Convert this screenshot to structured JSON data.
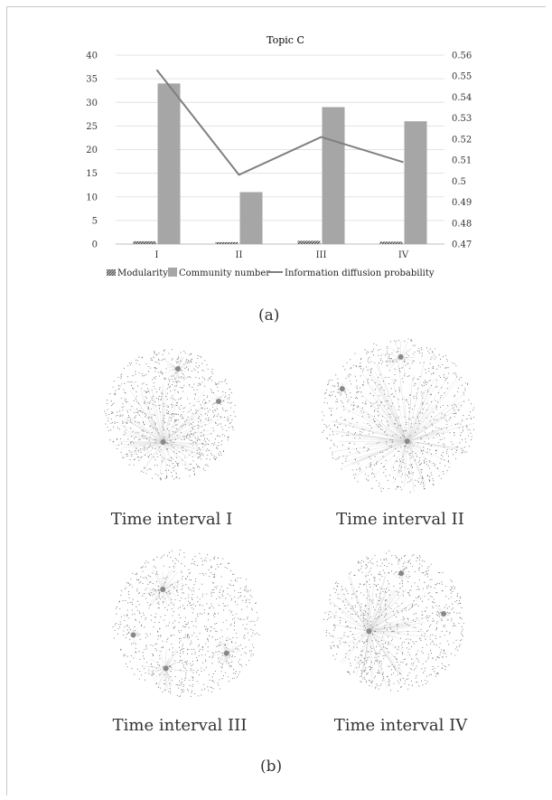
{
  "chart_data": {
    "type": "bar",
    "title": "Topic C",
    "categories": [
      "I",
      "II",
      "III",
      "IV"
    ],
    "series": [
      {
        "name": "Modularity",
        "axis": "left",
        "kind": "bar",
        "pattern": "hatched",
        "values": [
          0.6,
          0.4,
          0.7,
          0.5
        ]
      },
      {
        "name": "Community number",
        "axis": "left",
        "kind": "bar",
        "color": "#a6a6a6",
        "values": [
          34,
          11,
          29,
          26
        ]
      },
      {
        "name": "Information diffusion probability",
        "axis": "right",
        "kind": "line",
        "color": "#7f7f7f",
        "values": [
          0.553,
          0.503,
          0.521,
          0.509
        ]
      }
    ],
    "ylim_left": [
      0,
      40
    ],
    "yticks_left": [
      "0",
      "5",
      "10",
      "15",
      "20",
      "25",
      "30",
      "35",
      "40"
    ],
    "ylim_right": [
      0.47,
      0.56
    ],
    "yticks_right": [
      "0.47",
      "0.48",
      "0.49",
      "0.5",
      "0.51",
      "0.52",
      "0.53",
      "0.54",
      "0.55",
      "0.56"
    ],
    "grid": true,
    "legend": "bottom"
  },
  "captions": {
    "a": "(a)",
    "b": "(b)"
  },
  "networks": [
    {
      "label": "Time interval I"
    },
    {
      "label": "Time interval II"
    },
    {
      "label": "Time interval III"
    },
    {
      "label": "Time interval IV"
    }
  ]
}
